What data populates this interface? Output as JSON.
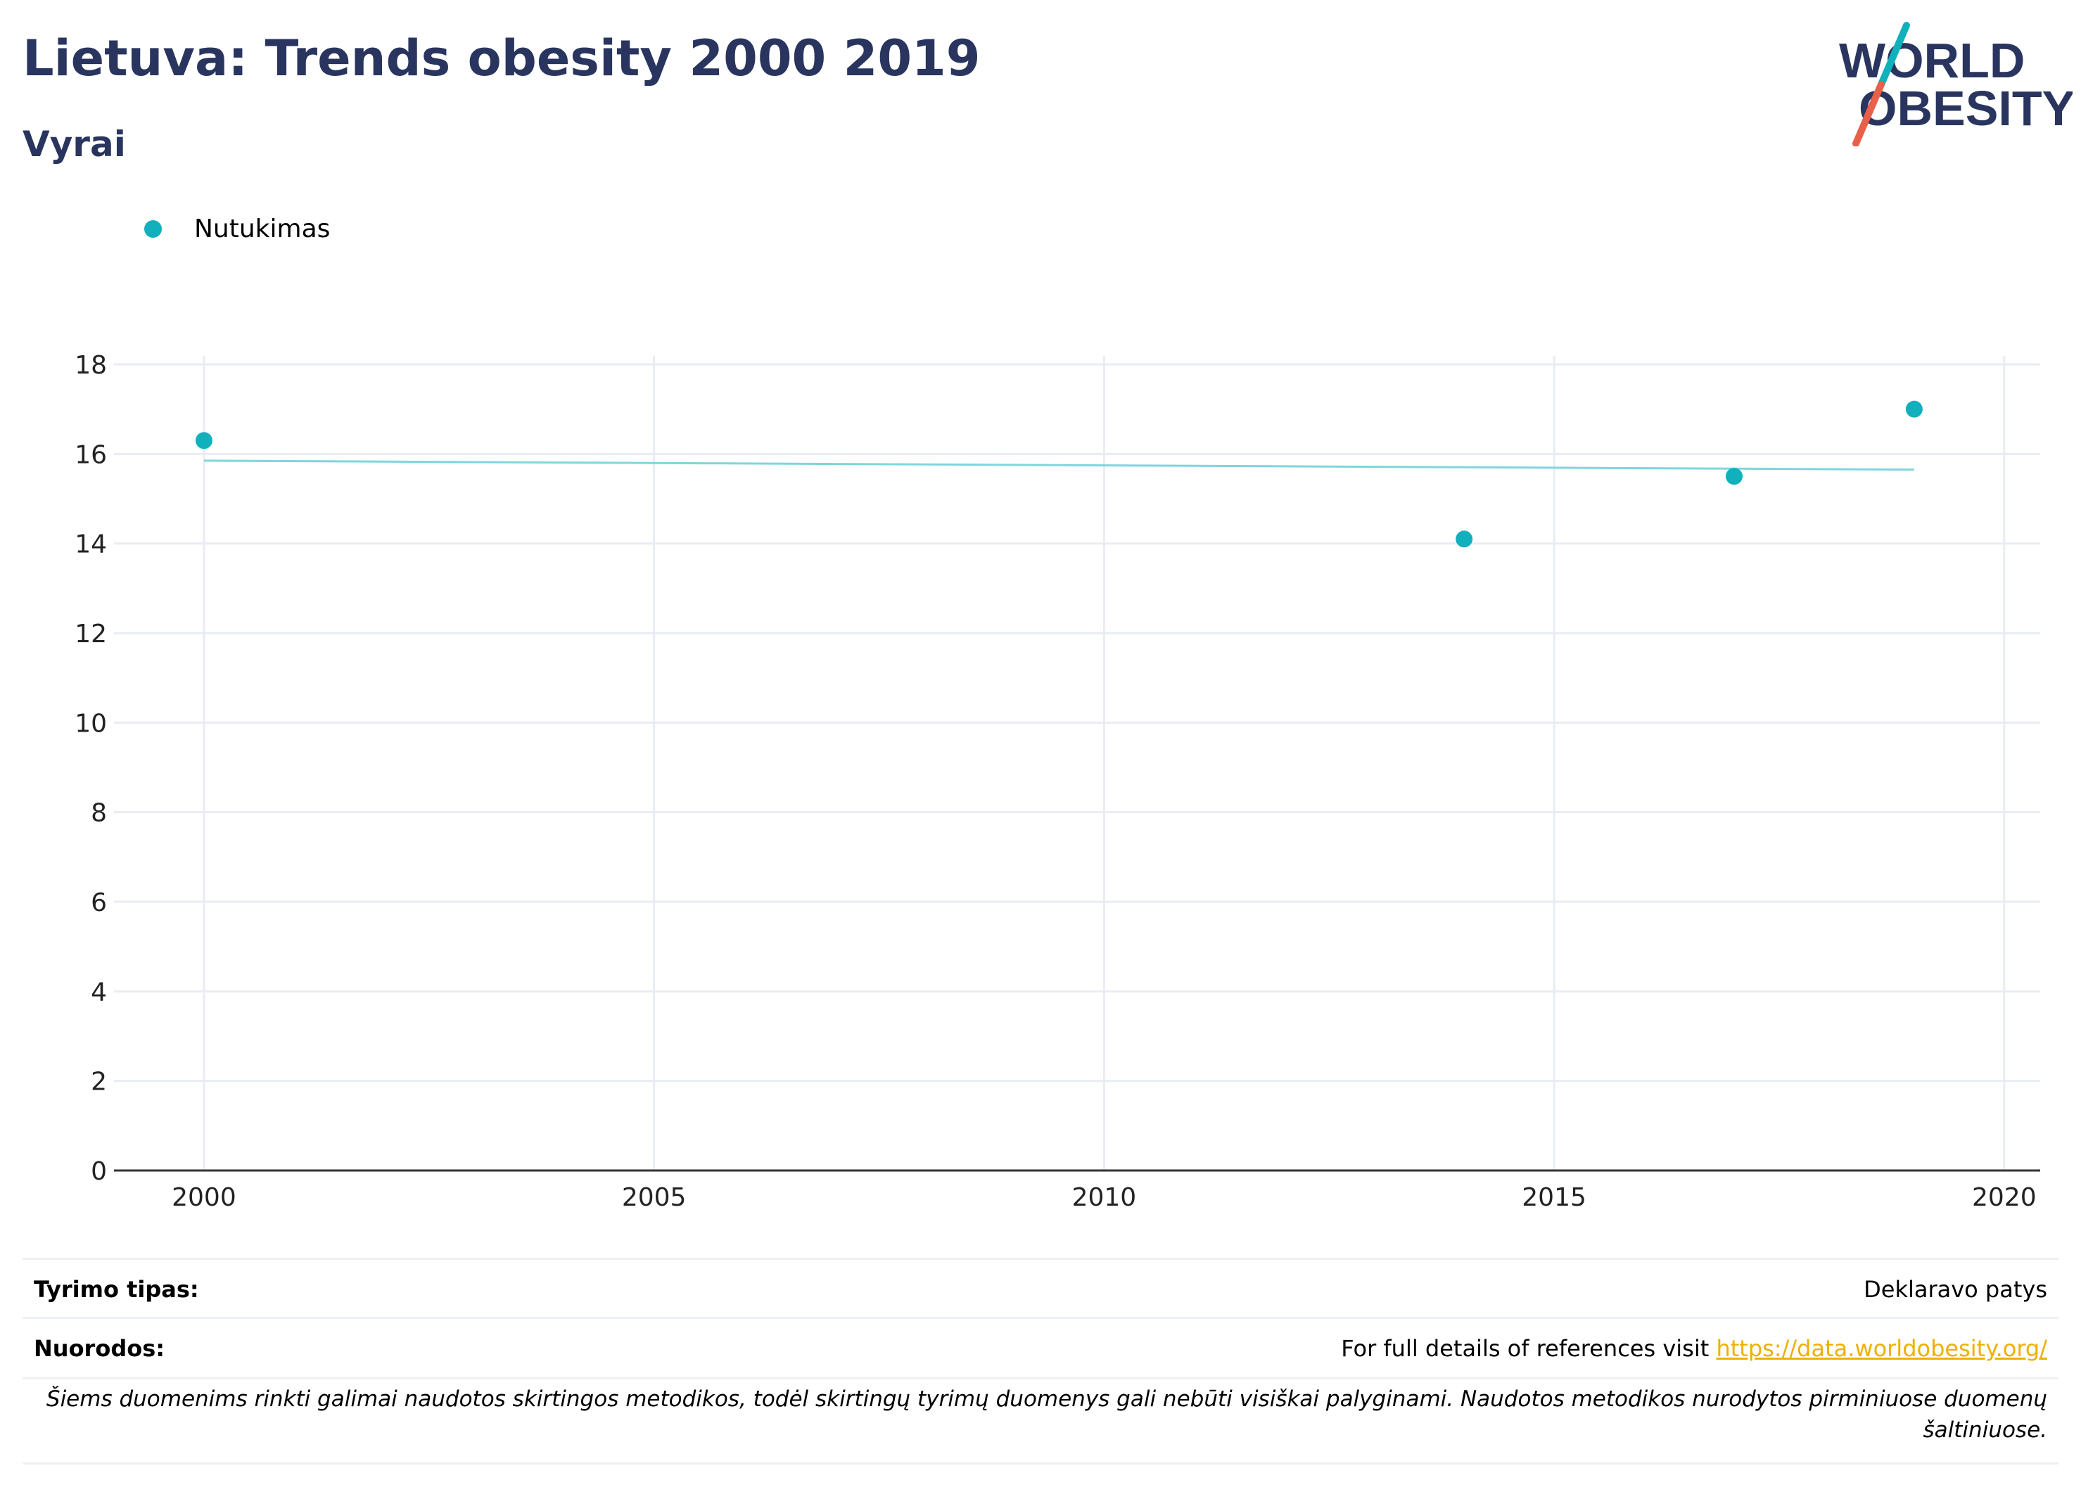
{
  "header": {
    "title": "Lietuva: Trends obesity 2000 2019",
    "subtitle": "Vyrai"
  },
  "logo": {
    "line1": "WORLD",
    "line2": "OBESITY",
    "colors": {
      "text": "#29355e",
      "slash_top": "#10b1bd",
      "slash_bottom": "#e8604a"
    }
  },
  "colors": {
    "series": "#10b1bd",
    "trend": "#7fd6dc",
    "grid": "#e9ecf2",
    "axis": "#333333"
  },
  "chart_data": {
    "type": "scatter",
    "title": "",
    "xlabel": "",
    "ylabel": "",
    "xlim": [
      1999.0,
      2020.4
    ],
    "ylim": [
      0,
      18
    ],
    "x_ticks": [
      2000,
      2005,
      2010,
      2015,
      2020
    ],
    "y_ticks": [
      0,
      2,
      4,
      6,
      8,
      10,
      12,
      14,
      16,
      18
    ],
    "grid": true,
    "legend_position": "top-left",
    "series": [
      {
        "name": "Nutukimas",
        "x": [
          2000,
          2014,
          2017,
          2019
        ],
        "y": [
          16.3,
          14.1,
          15.5,
          17.0
        ]
      }
    ],
    "trendline": {
      "x": [
        2000,
        2019
      ],
      "y": [
        15.85,
        15.65
      ]
    }
  },
  "info": {
    "survey_type_label": "Tyrimo tipas:",
    "survey_type_value": "Deklaravo patys",
    "references_label": "Nuorodos:",
    "references_text": "For full details of references visit ",
    "references_link": "https://data.worldobesity.org/",
    "note": "Šiems duomenims rinkti galimai naudotos skirtingos metodikos, todėl skirtingų tyrimų duomenys gali nebūti visiškai palyginami. Naudotos metodikos nurodytos pirminiuose duomenų šaltiniuose."
  }
}
